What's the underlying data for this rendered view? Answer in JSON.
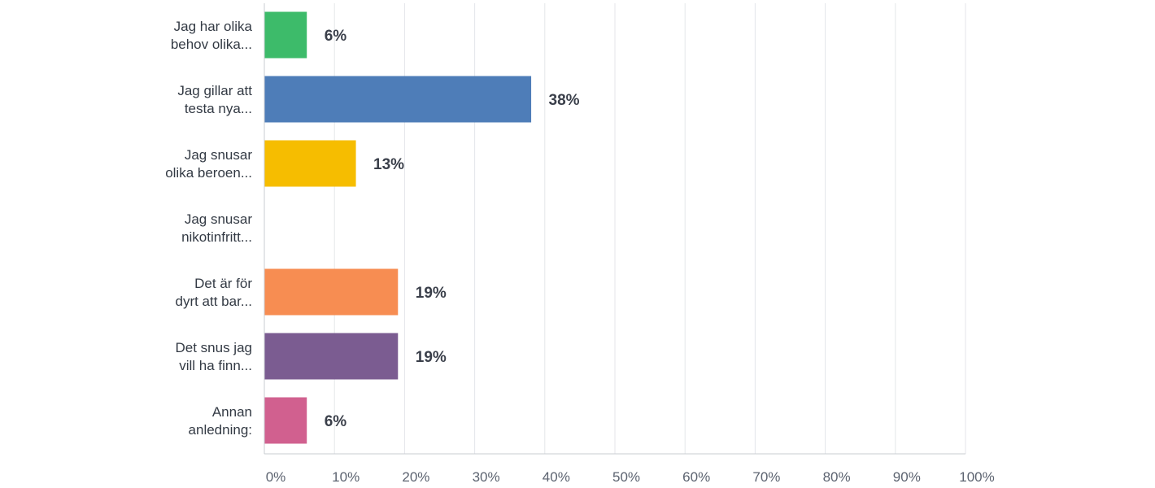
{
  "chart_data": {
    "type": "bar",
    "orientation": "horizontal",
    "categories": [
      [
        "Jag har olika",
        "behov olika..."
      ],
      [
        "Jag gillar att",
        "testa nya..."
      ],
      [
        "Jag snusar",
        "olika beroen..."
      ],
      [
        "Jag snusar",
        "nikotinfritt..."
      ],
      [
        "Det är för",
        "dyrt att bar..."
      ],
      [
        "Det snus jag",
        "vill ha finn..."
      ],
      [
        "Annan",
        "anledning:"
      ]
    ],
    "values": [
      6,
      38,
      13,
      0,
      19,
      19,
      6
    ],
    "data_labels": [
      "6%",
      "38%",
      "13%",
      "",
      "19%",
      "19%",
      "6%"
    ],
    "colors": [
      "#3dbb6a",
      "#4e7db8",
      "#f6bd00",
      "#cccccc",
      "#f78d52",
      "#7b5c91",
      "#d1608f"
    ],
    "xlim": [
      0,
      100
    ],
    "x_ticks": [
      "0%",
      "10%",
      "20%",
      "30%",
      "40%",
      "50%",
      "60%",
      "70%",
      "80%",
      "90%",
      "100%"
    ],
    "grid": true,
    "title": "",
    "xlabel": "",
    "ylabel": ""
  }
}
